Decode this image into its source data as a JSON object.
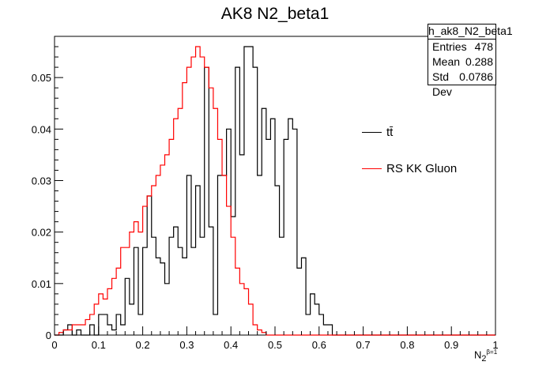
{
  "title": "AK8 N2_beta1",
  "stats": {
    "name": "h_ak8_N2_beta1",
    "rows": [
      {
        "label": "Entries",
        "value": "478"
      },
      {
        "label": "Mean",
        "value": "0.288"
      },
      {
        "label": "Std Dev",
        "value": "0.0786"
      }
    ]
  },
  "legend": [
    {
      "label": "tt̄",
      "color": "#000000"
    },
    {
      "label": "RS KK Gluon",
      "color": "#ff0000"
    }
  ],
  "xaxis": {
    "title_main": "N",
    "title_sub": "2",
    "title_sup": "β=1"
  },
  "chart_data": {
    "type": "line",
    "title": "AK8 N2_beta1",
    "xlabel": "N2 (β=1)",
    "xlim": [
      0,
      1
    ],
    "ylim": [
      0,
      0.058
    ],
    "bin_width": 0.01,
    "x_ticks": [
      "0",
      "0.1",
      "0.2",
      "0.3",
      "0.4",
      "0.5",
      "0.6",
      "0.7",
      "0.8",
      "0.9",
      "1"
    ],
    "y_ticks": [
      "0",
      "0.01",
      "0.02",
      "0.03",
      "0.04",
      "0.05"
    ],
    "series": [
      {
        "name": "tt̄",
        "color": "#000000",
        "values": [
          0,
          0,
          0.001,
          0.002,
          0,
          0.001,
          0,
          0,
          0.002,
          0,
          0.004,
          0.004,
          0.002,
          0.001,
          0.004,
          0.002,
          0.011,
          0.006,
          0.017,
          0.004,
          0.017,
          0.027,
          0.019,
          0.015,
          0.014,
          0.01,
          0.019,
          0.021,
          0.017,
          0.015,
          0.031,
          0.017,
          0.029,
          0.019,
          0.052,
          0.021,
          0.004,
          0.031,
          0.031,
          0.04,
          0.023,
          0.052,
          0.035,
          0.056,
          0.056,
          0.052,
          0.031,
          0.044,
          0.038,
          0.042,
          0.029,
          0.019,
          0.038,
          0.042,
          0.04,
          0.013,
          0.015,
          0.004,
          0.008,
          0.006,
          0.004,
          0.002,
          0.002,
          0,
          0,
          0,
          0,
          0,
          0,
          0,
          0,
          0,
          0,
          0,
          0,
          0,
          0,
          0,
          0,
          0,
          0,
          0,
          0,
          0,
          0,
          0,
          0,
          0,
          0,
          0,
          0,
          0,
          0,
          0,
          0,
          0,
          0,
          0,
          0,
          0
        ]
      },
      {
        "name": "RS KK Gluon",
        "color": "#ff0000",
        "values": [
          0,
          0.0005,
          0.001,
          0.001,
          0.002,
          0.002,
          0.002,
          0.003,
          0.004,
          0.006,
          0.008,
          0.007,
          0.009,
          0.011,
          0.013,
          0.017,
          0.017,
          0.02,
          0.022,
          0.02,
          0.025,
          0.027,
          0.029,
          0.031,
          0.033,
          0.035,
          0.038,
          0.042,
          0.044,
          0.049,
          0.052,
          0.054,
          0.056,
          0.054,
          0.052,
          0.048,
          0.044,
          0.038,
          0.031,
          0.025,
          0.019,
          0.013,
          0.01,
          0.009,
          0.006,
          0.002,
          0.001,
          0.0005,
          0,
          0,
          0,
          0,
          0,
          0,
          0,
          0,
          0,
          0,
          0,
          0,
          0,
          0,
          0,
          0,
          0,
          0,
          0,
          0,
          0,
          0,
          0,
          0,
          0,
          0,
          0,
          0,
          0,
          0,
          0,
          0,
          0,
          0,
          0,
          0,
          0,
          0,
          0,
          0,
          0,
          0,
          0,
          0,
          0,
          0,
          0,
          0,
          0,
          0,
          0,
          0
        ]
      }
    ]
  }
}
